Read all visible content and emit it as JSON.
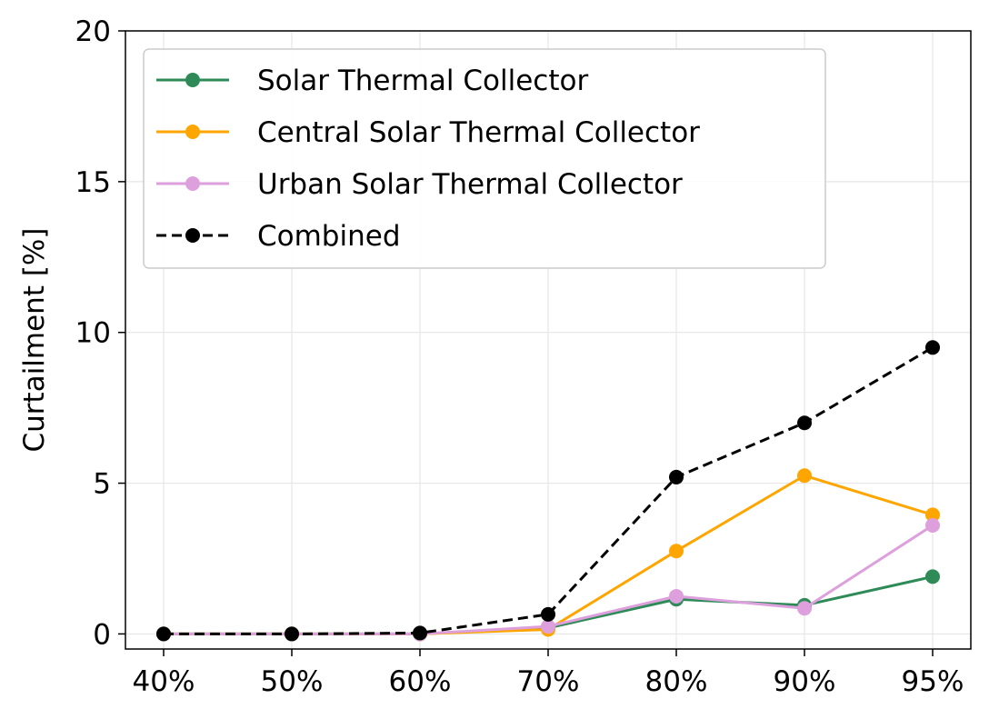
{
  "chart_data": {
    "type": "line",
    "title": "",
    "xlabel": "",
    "ylabel": "Curtailment [%]",
    "categories": [
      "40%",
      "50%",
      "60%",
      "70%",
      "80%",
      "90%",
      "95%"
    ],
    "ylim": [
      -0.5,
      20
    ],
    "yticks": [
      "0",
      "5",
      "10",
      "15",
      "20"
    ],
    "grid": true,
    "legend_position": "top-left",
    "series": [
      {
        "name": "Solar Thermal Collector",
        "color": "#2e8b57",
        "linestyle": "solid",
        "values": [
          0.0,
          0.0,
          0.0,
          0.2,
          1.15,
          0.95,
          1.9
        ]
      },
      {
        "name": "Central Solar Thermal Collector",
        "color": "#ffa500",
        "linestyle": "solid",
        "values": [
          0.0,
          0.0,
          0.0,
          0.15,
          2.75,
          5.25,
          3.95
        ]
      },
      {
        "name": "Urban Solar Thermal Collector",
        "color": "#dda0dd",
        "linestyle": "solid",
        "values": [
          0.0,
          0.0,
          0.0,
          0.25,
          1.25,
          0.85,
          3.6
        ]
      },
      {
        "name": "Combined",
        "color": "#000000",
        "linestyle": "dashed",
        "values": [
          0.0,
          0.0,
          0.03,
          0.65,
          5.2,
          7.0,
          9.5
        ]
      }
    ]
  }
}
